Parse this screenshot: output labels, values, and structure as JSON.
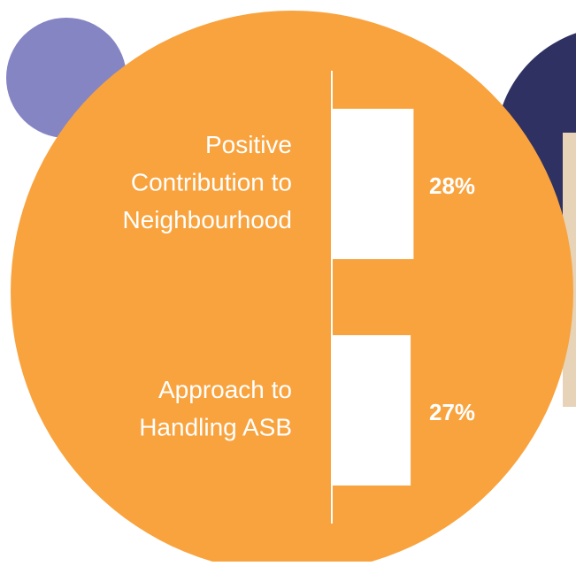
{
  "chart_data": {
    "type": "bar",
    "orientation": "horizontal",
    "categories": [
      [
        "Positive",
        "Contribution to",
        "Neighbourhood"
      ],
      [
        "Approach to",
        "Handling ASB"
      ]
    ],
    "values": [
      28,
      27
    ],
    "value_labels": [
      "28%",
      "27%"
    ],
    "color": "#ffffff"
  }
}
